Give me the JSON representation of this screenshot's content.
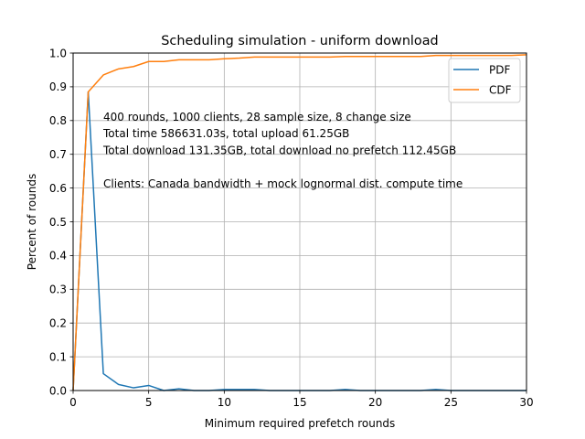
{
  "chart_data": {
    "type": "line",
    "title": "Scheduling simulation - uniform download",
    "xlabel": "Minimum required prefetch rounds",
    "ylabel": "Percent of rounds",
    "xlim": [
      0,
      30
    ],
    "ylim": [
      0,
      1.0
    ],
    "x_ticks": [
      "0",
      "5",
      "10",
      "15",
      "20",
      "25",
      "30"
    ],
    "y_ticks": [
      "0.0",
      "0.1",
      "0.2",
      "0.3",
      "0.4",
      "0.5",
      "0.6",
      "0.7",
      "0.8",
      "0.9",
      "1.0"
    ],
    "grid": true,
    "legend_position": "top-right",
    "x": [
      0,
      1,
      2,
      3,
      4,
      5,
      6,
      7,
      8,
      9,
      10,
      11,
      12,
      13,
      14,
      15,
      16,
      17,
      18,
      19,
      20,
      21,
      22,
      23,
      24,
      25,
      26,
      27,
      28,
      29,
      30
    ],
    "series": [
      {
        "name": "PDF",
        "color": "#1f77b4",
        "values": [
          0,
          0.885,
          0.05,
          0.018,
          0.008,
          0.015,
          0,
          0.005,
          0,
          0,
          0.003,
          0.003,
          0.003,
          0,
          0,
          0,
          0,
          0,
          0.003,
          0,
          0,
          0,
          0,
          0,
          0.003,
          0,
          0,
          0,
          0,
          0,
          0
        ]
      },
      {
        "name": "CDF",
        "color": "#ff7f0e",
        "values": [
          0,
          0.885,
          0.935,
          0.953,
          0.96,
          0.975,
          0.975,
          0.98,
          0.98,
          0.98,
          0.983,
          0.985,
          0.988,
          0.988,
          0.988,
          0.988,
          0.988,
          0.988,
          0.99,
          0.99,
          0.99,
          0.99,
          0.99,
          0.99,
          0.993,
          0.993,
          0.993,
          0.993,
          0.993,
          0.993,
          0.995
        ]
      }
    ],
    "annotations": [
      "400 rounds, 1000 clients, 28 sample size, 8 change size",
      "Total time 586631.03s, total upload 61.25GB",
      "Total download 131.35GB, total download no prefetch 112.45GB",
      "",
      "Clients: Canada bandwidth + mock lognormal dist. compute time"
    ]
  }
}
